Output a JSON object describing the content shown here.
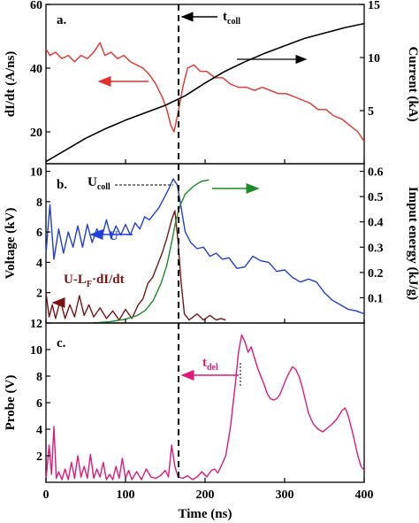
{
  "chart_data": [
    {
      "panel_label": "a.",
      "type": "line",
      "xlim": [
        0,
        400
      ],
      "ylim_left": [
        10,
        60
      ],
      "ylim_right": [
        0,
        15
      ],
      "yticks_left": [
        "20",
        "40",
        "60"
      ],
      "yticks_right": [
        "5",
        "10",
        "15"
      ],
      "ylabel_left": "dI/dt (A/ns)",
      "ylabel_right": "Current (kA)",
      "annotation": "t",
      "annotation_sub": "coll",
      "series": [
        {
          "color": "#e8302a",
          "axis": "left",
          "points": [
            [
              0,
              46
            ],
            [
              5,
              44
            ],
            [
              12,
              45
            ],
            [
              20,
              43
            ],
            [
              28,
              44
            ],
            [
              36,
              42
            ],
            [
              44,
              44
            ],
            [
              52,
              43
            ],
            [
              60,
              45
            ],
            [
              68,
              48
            ],
            [
              74,
              44
            ],
            [
              82,
              45
            ],
            [
              90,
              43
            ],
            [
              98,
              44
            ],
            [
              106,
              42
            ],
            [
              114,
              41
            ],
            [
              122,
              40
            ],
            [
              130,
              38
            ],
            [
              138,
              35
            ],
            [
              146,
              31
            ],
            [
              152,
              27
            ],
            [
              157,
              22
            ],
            [
              161,
              20
            ],
            [
              166,
              26
            ],
            [
              172,
              34
            ],
            [
              178,
              40
            ],
            [
              186,
              41
            ],
            [
              194,
              39
            ],
            [
              202,
              39
            ],
            [
              212,
              37
            ],
            [
              222,
              37
            ],
            [
              232,
              35
            ],
            [
              242,
              34
            ],
            [
              252,
              34
            ],
            [
              262,
              33
            ],
            [
              272,
              34
            ],
            [
              282,
              33
            ],
            [
              292,
              32
            ],
            [
              302,
              32
            ],
            [
              312,
              31
            ],
            [
              322,
              30
            ],
            [
              332,
              29
            ],
            [
              342,
              27
            ],
            [
              352,
              27
            ],
            [
              362,
              25
            ],
            [
              372,
              24
            ],
            [
              382,
              22
            ],
            [
              392,
              20
            ],
            [
              400,
              17
            ]
          ]
        },
        {
          "color": "#000000",
          "axis": "right",
          "points": [
            [
              0,
              0.2
            ],
            [
              25,
              1.3
            ],
            [
              50,
              2.4
            ],
            [
              75,
              3.3
            ],
            [
              100,
              4.1
            ],
            [
              125,
              4.8
            ],
            [
              150,
              5.5
            ],
            [
              175,
              6.4
            ],
            [
              200,
              7.6
            ],
            [
              225,
              8.7
            ],
            [
              250,
              9.6
            ],
            [
              275,
              10.4
            ],
            [
              300,
              11.1
            ],
            [
              325,
              11.8
            ],
            [
              350,
              12.3
            ],
            [
              375,
              12.8
            ],
            [
              400,
              13.2
            ]
          ]
        }
      ]
    },
    {
      "panel_label": "b.",
      "type": "line",
      "xlim": [
        0,
        400
      ],
      "ylim_left": [
        0,
        10.5
      ],
      "ylim_right": [
        0,
        0.63
      ],
      "yticks_left": [
        "2",
        "4",
        "6",
        "8",
        "10"
      ],
      "yticks_right": [
        "0.1",
        "0.2",
        "0.3",
        "0.4",
        "0.5",
        "0.6"
      ],
      "ylabel_left": "Voltage (kV)",
      "ylabel_right": "Imput energy (kJ/g)",
      "annotation_ucoll": "U",
      "annotation_ucoll_sub": "coll",
      "annotation_u": "U",
      "annotation_ul": "U-L",
      "annotation_ul_sub": "F",
      "annotation_ul_tail": "·dI/dt",
      "series": [
        {
          "color": "#1f3fd6",
          "axis": "left",
          "points": [
            [
              0,
              4.6
            ],
            [
              5,
              7.8
            ],
            [
              10,
              4.2
            ],
            [
              16,
              6.2
            ],
            [
              22,
              4.6
            ],
            [
              28,
              6.0
            ],
            [
              34,
              5.0
            ],
            [
              40,
              6.4
            ],
            [
              46,
              5.0
            ],
            [
              52,
              6.5
            ],
            [
              58,
              5.3
            ],
            [
              64,
              6.2
            ],
            [
              70,
              5.6
            ],
            [
              76,
              6.8
            ],
            [
              82,
              5.6
            ],
            [
              88,
              6.4
            ],
            [
              94,
              5.8
            ],
            [
              100,
              6.5
            ],
            [
              106,
              5.8
            ],
            [
              112,
              6.6
            ],
            [
              118,
              6.2
            ],
            [
              124,
              7.0
            ],
            [
              130,
              6.8
            ],
            [
              136,
              7.2
            ],
            [
              142,
              7.6
            ],
            [
              148,
              8.2
            ],
            [
              154,
              8.8
            ],
            [
              160,
              9.5
            ],
            [
              165,
              9.1
            ],
            [
              170,
              7.6
            ],
            [
              175,
              6.0
            ],
            [
              182,
              5.3
            ],
            [
              190,
              4.9
            ],
            [
              198,
              5.0
            ],
            [
              206,
              4.4
            ],
            [
              214,
              4.6
            ],
            [
              222,
              4.2
            ],
            [
              230,
              4.3
            ],
            [
              240,
              3.6
            ],
            [
              250,
              3.7
            ],
            [
              260,
              4.4
            ],
            [
              270,
              4.1
            ],
            [
              280,
              4.0
            ],
            [
              290,
              3.4
            ],
            [
              300,
              3.5
            ],
            [
              310,
              3.0
            ],
            [
              320,
              2.7
            ],
            [
              330,
              2.9
            ],
            [
              340,
              2.7
            ],
            [
              350,
              2.0
            ],
            [
              360,
              1.5
            ],
            [
              370,
              1.2
            ],
            [
              380,
              0.9
            ],
            [
              390,
              0.8
            ],
            [
              400,
              0.6
            ]
          ]
        },
        {
          "color": "#7a1414",
          "axis": "left",
          "points": [
            [
              0,
              2.0
            ],
            [
              4,
              0.4
            ],
            [
              8,
              1.2
            ],
            [
              12,
              0.3
            ],
            [
              18,
              1.5
            ],
            [
              24,
              0.3
            ],
            [
              30,
              1.2
            ],
            [
              36,
              0.4
            ],
            [
              42,
              1.8
            ],
            [
              48,
              0.5
            ],
            [
              54,
              1.2
            ],
            [
              60,
              0.4
            ],
            [
              68,
              1.0
            ],
            [
              76,
              0.3
            ],
            [
              84,
              0.8
            ],
            [
              92,
              0.2
            ],
            [
              100,
              0.9
            ],
            [
              108,
              0.3
            ],
            [
              116,
              1.2
            ],
            [
              122,
              1.6
            ],
            [
              128,
              2.6
            ],
            [
              134,
              3.0
            ],
            [
              140,
              3.8
            ],
            [
              146,
              4.6
            ],
            [
              152,
              5.6
            ],
            [
              158,
              6.8
            ],
            [
              162,
              7.4
            ],
            [
              166,
              5.4
            ],
            [
              170,
              2.6
            ],
            [
              174,
              0.6
            ],
            [
              180,
              0.2
            ],
            [
              190,
              0.6
            ],
            [
              198,
              0.2
            ],
            [
              206,
              0.5
            ],
            [
              214,
              0.2
            ],
            [
              220,
              0.3
            ],
            [
              226,
              0.2
            ]
          ]
        },
        {
          "color": "#1f8a28",
          "axis": "right",
          "points": [
            [
              60,
              0.0
            ],
            [
              80,
              0.005
            ],
            [
              100,
              0.015
            ],
            [
              115,
              0.03
            ],
            [
              125,
              0.05
            ],
            [
              135,
              0.09
            ],
            [
              145,
              0.16
            ],
            [
              152,
              0.23
            ],
            [
              158,
              0.32
            ],
            [
              163,
              0.4
            ],
            [
              168,
              0.46
            ],
            [
              175,
              0.51
            ],
            [
              185,
              0.54
            ],
            [
              195,
              0.56
            ],
            [
              205,
              0.566
            ]
          ]
        }
      ]
    },
    {
      "panel_label": "c.",
      "type": "line",
      "xlim": [
        0,
        400
      ],
      "ylim_left": [
        0,
        12
      ],
      "xticks": [
        "0",
        "100",
        "200",
        "300",
        "400"
      ],
      "yticks_left": [
        "2",
        "4",
        "6",
        "8",
        "10",
        "12"
      ],
      "xlabel": "Time (ns)",
      "ylabel_left": "Probe (V)",
      "annotation": "t",
      "annotation_sub": "del",
      "series": [
        {
          "color": "#e0197a",
          "axis": "left",
          "points": [
            [
              0,
              0.2
            ],
            [
              4,
              2.8
            ],
            [
              7,
              0.6
            ],
            [
              10,
              4.2
            ],
            [
              13,
              0.3
            ],
            [
              16,
              0.8
            ],
            [
              20,
              0.2
            ],
            [
              24,
              1.0
            ],
            [
              28,
              0.2
            ],
            [
              32,
              1.5
            ],
            [
              36,
              0.3
            ],
            [
              40,
              2.0
            ],
            [
              44,
              0.4
            ],
            [
              48,
              1.2
            ],
            [
              52,
              0.3
            ],
            [
              56,
              2.1
            ],
            [
              60,
              0.3
            ],
            [
              64,
              1.0
            ],
            [
              68,
              0.4
            ],
            [
              72,
              1.5
            ],
            [
              76,
              0.2
            ],
            [
              80,
              0.6
            ],
            [
              84,
              0.2
            ],
            [
              88,
              1.2
            ],
            [
              92,
              0.3
            ],
            [
              96,
              1.8
            ],
            [
              100,
              0.3
            ],
            [
              104,
              0.9
            ],
            [
              108,
              0.2
            ],
            [
              114,
              0.8
            ],
            [
              120,
              0.2
            ],
            [
              126,
              1.0
            ],
            [
              132,
              0.4
            ],
            [
              138,
              0.3
            ],
            [
              144,
              0.5
            ],
            [
              150,
              0.9
            ],
            [
              154,
              0.4
            ],
            [
              158,
              2.8
            ],
            [
              162,
              1.2
            ],
            [
              166,
              0.4
            ],
            [
              172,
              0.3
            ],
            [
              178,
              0.5
            ],
            [
              184,
              0.2
            ],
            [
              190,
              0.4
            ],
            [
              196,
              0.8
            ],
            [
              202,
              0.4
            ],
            [
              208,
              0.9
            ],
            [
              212,
              1.0
            ],
            [
              216,
              0.7
            ],
            [
              220,
              1.2
            ],
            [
              226,
              2.0
            ],
            [
              232,
              4.2
            ],
            [
              238,
              7.4
            ],
            [
              242,
              9.8
            ],
            [
              246,
              11.1
            ],
            [
              250,
              10.6
            ],
            [
              254,
              9.8
            ],
            [
              258,
              10.2
            ],
            [
              262,
              9.4
            ],
            [
              266,
              8.6
            ],
            [
              270,
              8.0
            ],
            [
              274,
              7.4
            ],
            [
              278,
              6.7
            ],
            [
              282,
              6.3
            ],
            [
              286,
              6.2
            ],
            [
              290,
              6.3
            ],
            [
              294,
              6.6
            ],
            [
              298,
              7.2
            ],
            [
              302,
              7.8
            ],
            [
              306,
              8.3
            ],
            [
              310,
              8.7
            ],
            [
              314,
              8.5
            ],
            [
              318,
              8.0
            ],
            [
              322,
              7.2
            ],
            [
              326,
              6.2
            ],
            [
              330,
              5.2
            ],
            [
              336,
              4.4
            ],
            [
              342,
              4.0
            ],
            [
              348,
              3.8
            ],
            [
              354,
              4.1
            ],
            [
              360,
              4.4
            ],
            [
              366,
              4.8
            ],
            [
              372,
              5.4
            ],
            [
              376,
              5.6
            ],
            [
              380,
              5.0
            ],
            [
              386,
              3.6
            ],
            [
              392,
              2.0
            ],
            [
              396,
              1.2
            ],
            [
              400,
              0.9
            ]
          ]
        }
      ]
    }
  ]
}
